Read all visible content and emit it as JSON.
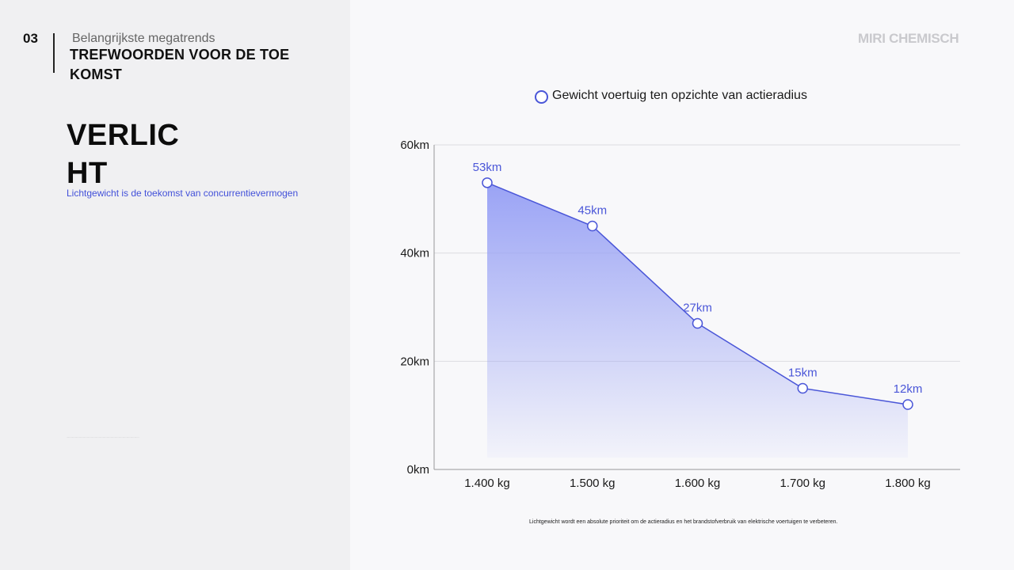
{
  "slide": {
    "number": "03",
    "section_label": "Belangrijkste megatrends",
    "keywords_title": "TREFWOORDEN VOOR DE TOE KOMST",
    "heading": "VERLICHT",
    "subtitle": "Lichtgewicht is de toekomst van concurrentievermogen",
    "brand": "MIRI CHEMISCH",
    "caption": "Lichtgewicht wordt een absolute prioriteit om de actieradius en het brandstofverbruik van elektrische voertuigen te verbeteren."
  },
  "colors": {
    "accent": "#4a56d8",
    "fill_top": "#9aa3f5",
    "grid": "#dcdce0",
    "axis": "#999999"
  },
  "chart_data": {
    "type": "area",
    "categories": [
      "1.400 kg",
      "1.500 kg",
      "1.600 kg",
      "1.700 kg",
      "1.800 kg"
    ],
    "series": [
      {
        "name": "Gewicht voertuig ten opzichte van actieradius",
        "values": [
          53,
          45,
          27,
          15,
          12
        ],
        "labels": [
          "53km",
          "45km",
          "27km",
          "15km",
          "12km"
        ]
      }
    ],
    "y_ticks": [
      "0km",
      "20km",
      "40km",
      "60km"
    ],
    "ylim": [
      0,
      60
    ],
    "grid": true,
    "legend": "top"
  }
}
